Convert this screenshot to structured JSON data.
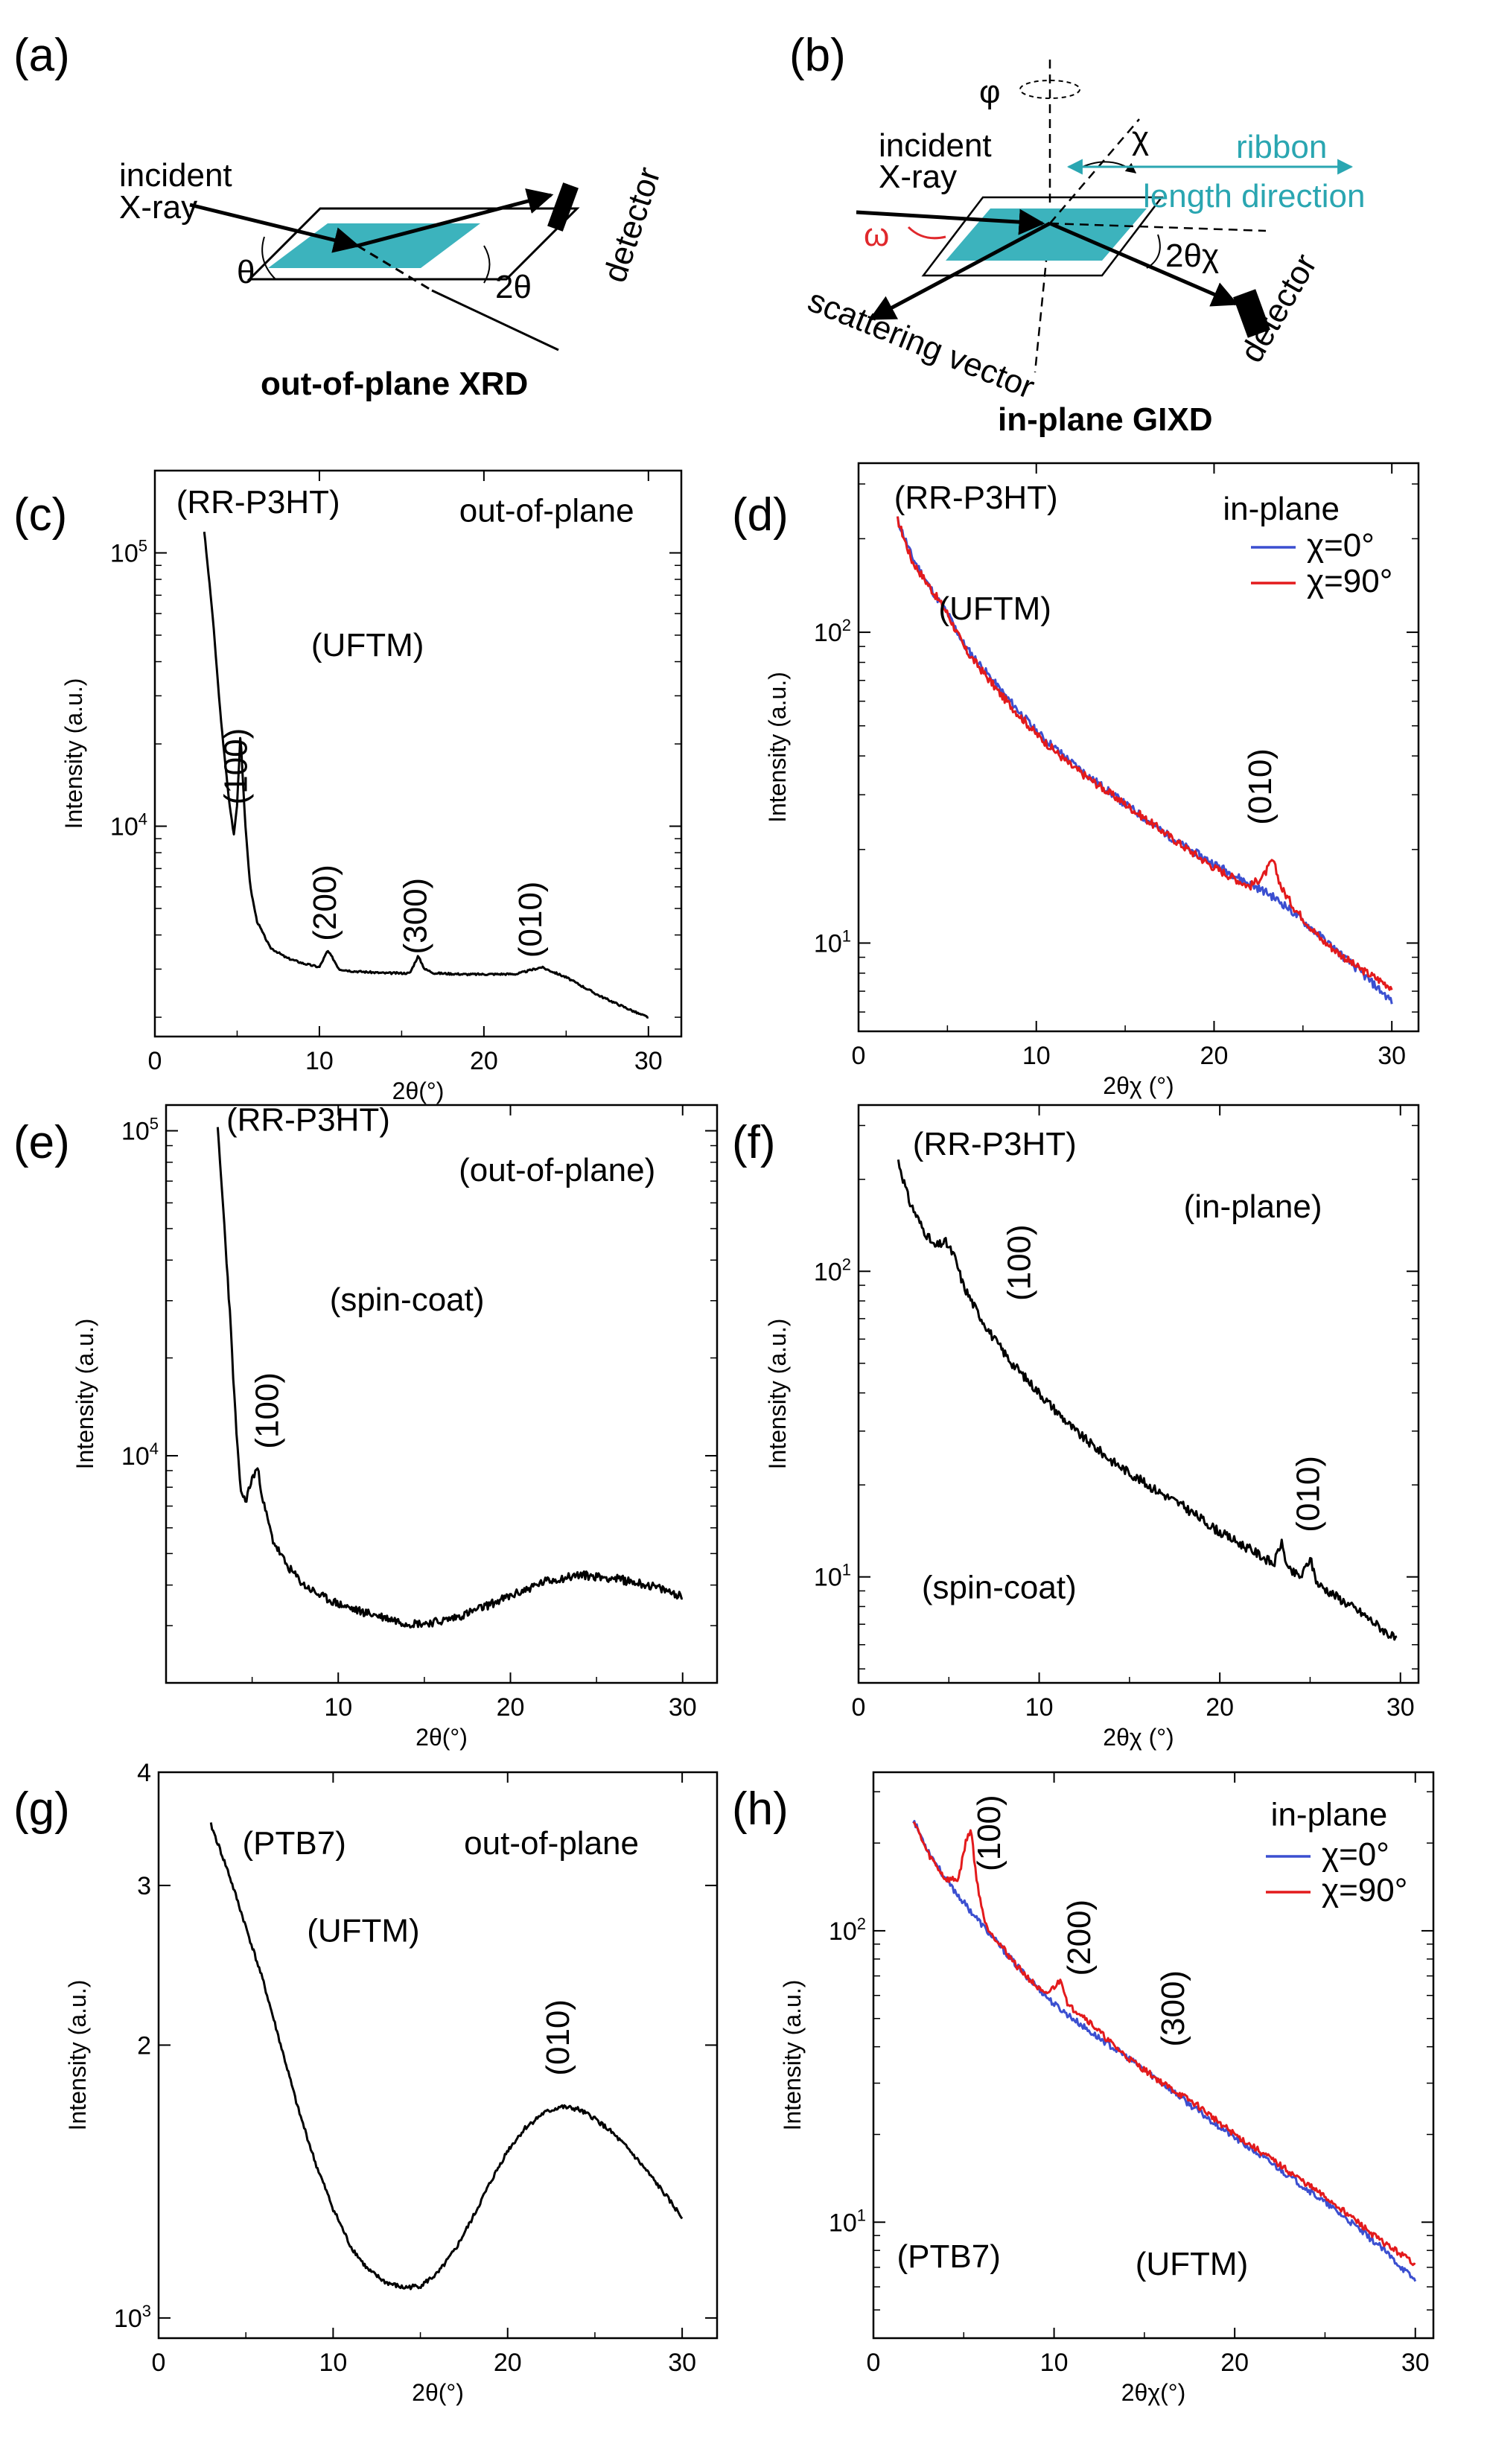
{
  "panel_a": {
    "label": "(a)",
    "incident_line1": "incident",
    "incident_line2": "X-ray",
    "theta": "θ",
    "two_theta": "2θ",
    "detector": "detector",
    "caption": "out-of-plane XRD",
    "colors": {
      "sample": "#3cb3bd"
    }
  },
  "panel_b": {
    "label": "(b)",
    "phi": "φ",
    "chi": "χ",
    "ribbon_line1": "ribbon",
    "ribbon_line2": "length direction",
    "incident_line1": "incident",
    "incident_line2": "X-ray",
    "omega": "ω",
    "two_theta_chi": "2θχ",
    "scattering": "scattering vector",
    "detector": "detector",
    "caption": "in-plane GIXD",
    "colors": {
      "sample": "#3cb3bd",
      "ribbon": "#2aa6b1",
      "omega": "#e0282c"
    }
  },
  "chart_data": [
    {
      "id": "c",
      "panel_label": "(c)",
      "type": "line",
      "scale": "log",
      "xlabel": "2θ(°)",
      "ylabel": "Intensity (a.u.)",
      "xlim": [
        0,
        32
      ],
      "ylim": [
        1700,
        200000
      ],
      "xticks": [
        0,
        10,
        20,
        30
      ],
      "yticks": [
        {
          "v": 10000,
          "base": "10",
          "exp": "4"
        },
        {
          "v": 100000,
          "base": "10",
          "exp": "5"
        }
      ],
      "annotations": [
        {
          "text": "(RR-P3HT)",
          "x": 1.3,
          "y": 140000
        },
        {
          "text": "out-of-plane",
          "x": 18.5,
          "y": 130000
        },
        {
          "text": "(UFTM)",
          "x": 9.5,
          "y": 42000
        }
      ],
      "peak_labels": [
        {
          "text": "(100)",
          "x": 5.6,
          "y": 12000
        },
        {
          "text": "(200)",
          "x": 11.0,
          "y": 3800
        },
        {
          "text": "(300)",
          "x": 16.5,
          "y": 3400
        },
        {
          "text": "(010)",
          "x": 23.5,
          "y": 3300
        }
      ],
      "series": [
        {
          "name": "RR-P3HT UFTM",
          "color": "#000000",
          "seed": 3,
          "noise": 0.008,
          "x": [
            3.0,
            3.5,
            4.0,
            4.5,
            4.8,
            5.0,
            5.2,
            5.5,
            5.8,
            6.2,
            7.0,
            8.0,
            9.0,
            10.0,
            10.5,
            10.8,
            11.2,
            12.0,
            14.0,
            15.5,
            16.0,
            16.4,
            17.0,
            19.0,
            22.0,
            23.5,
            25.0,
            27.0,
            29.5,
            30.0
          ],
          "y": [
            120000,
            60000,
            25000,
            12500,
            9300,
            12000,
            22000,
            10000,
            6000,
            4500,
            3600,
            3300,
            3150,
            3050,
            3500,
            3300,
            3000,
            2950,
            2900,
            2900,
            3350,
            3000,
            2900,
            2870,
            2880,
            3050,
            2800,
            2400,
            2050,
            2000
          ]
        }
      ]
    },
    {
      "id": "d",
      "panel_label": "(d)",
      "type": "line",
      "scale": "log",
      "xlabel": "2θχ (°)",
      "ylabel": "Intensity (a.u.)",
      "xlim": [
        0,
        31.5
      ],
      "ylim": [
        5.2,
        350
      ],
      "xticks": [
        0,
        10,
        20,
        30
      ],
      "yticks": [
        {
          "v": 10,
          "base": "10",
          "exp": "1"
        },
        {
          "v": 100,
          "base": "10",
          "exp": "2"
        }
      ],
      "annotations": [
        {
          "text": "(RR-P3HT)",
          "x": 2.0,
          "y": 250
        },
        {
          "text": "(UFTM)",
          "x": 4.5,
          "y": 110
        },
        {
          "text": "in-plane",
          "x": 20.5,
          "y": 230
        }
      ],
      "peak_labels": [
        {
          "text": "(010)",
          "x": 23.2,
          "y": 24
        }
      ],
      "legend": {
        "position": "top-right",
        "entries": [
          {
            "name": "χ=0°",
            "color": "#3b4fd0"
          },
          {
            "name": "χ=90°",
            "color": "#e31a1c"
          }
        ]
      },
      "series": [
        {
          "name": "χ=0°",
          "color": "#3b4fd0",
          "seed": 11,
          "noise": 0.03,
          "x": [
            2.2,
            3.0,
            4.0,
            5.0,
            6.0,
            8.0,
            10.0,
            12.0,
            15.0,
            18.0,
            20.0,
            22.0,
            23.0,
            24.0,
            26.0,
            28.0,
            30.0
          ],
          "y": [
            230,
            175,
            140,
            115,
            90,
            65,
            48,
            38,
            28,
            21,
            18,
            15.5,
            14.5,
            13.2,
            10.5,
            8.3,
            6.5
          ]
        },
        {
          "name": "χ=90°",
          "color": "#e31a1c",
          "seed": 17,
          "noise": 0.03,
          "x": [
            2.2,
            3.0,
            4.0,
            5.0,
            6.0,
            8.0,
            10.0,
            12.0,
            15.0,
            18.0,
            20.0,
            22.0,
            22.8,
            23.3,
            23.8,
            24.5,
            26.0,
            28.0,
            30.0
          ],
          "y": [
            230,
            170,
            140,
            115,
            88,
            63,
            47,
            37,
            28,
            21,
            17.5,
            15.2,
            16.5,
            18.5,
            15,
            13,
            10.3,
            8.4,
            7.2
          ]
        }
      ]
    },
    {
      "id": "e",
      "panel_label": "(e)",
      "type": "line",
      "scale": "log",
      "xlabel": "2θ(°)",
      "ylabel": "Intensity (a.u.)",
      "xlim": [
        0,
        32
      ],
      "ylim": [
        2000,
        120000
      ],
      "xticks": [
        10,
        20,
        30
      ],
      "yticks": [
        {
          "v": 10000,
          "base": "10",
          "exp": "4"
        },
        {
          "v": 100000,
          "base": "10",
          "exp": "5"
        }
      ],
      "annotations": [
        {
          "text": "(RR-P3HT)",
          "x": 3.5,
          "y": 100000
        },
        {
          "text": "(out-of-plane)",
          "x": 17.0,
          "y": 70000
        },
        {
          "text": "(spin-coat)",
          "x": 9.5,
          "y": 28000
        }
      ],
      "peak_labels": [
        {
          "text": "(100)",
          "x": 6.5,
          "y": 10500
        }
      ],
      "series": [
        {
          "name": "RR-P3HT spin-coat",
          "color": "#000000",
          "seed": 23,
          "noise": 0.03,
          "x": [
            3.0,
            3.3,
            3.7,
            4.0,
            4.3,
            4.6,
            5.0,
            5.3,
            5.7,
            6.2,
            7.0,
            8.0,
            9.0,
            10.0,
            11.0,
            12.0,
            13.0,
            14.0,
            15.0,
            16.0,
            17.0,
            18.0,
            20.0,
            22.0,
            24.0,
            26.0,
            28.0,
            30.0
          ],
          "y": [
            100000,
            60000,
            28000,
            14000,
            8000,
            7200,
            8500,
            9200,
            7000,
            5500,
            4600,
            4000,
            3700,
            3500,
            3350,
            3250,
            3150,
            3050,
            3050,
            3100,
            3200,
            3350,
            3700,
            4100,
            4300,
            4200,
            4000,
            3700
          ]
        }
      ]
    },
    {
      "id": "f",
      "panel_label": "(f)",
      "type": "line",
      "scale": "log",
      "xlabel": "2θχ (°)",
      "ylabel": "Intensity (a.u.)",
      "xlim": [
        0,
        31
      ],
      "ylim": [
        4.5,
        350
      ],
      "xticks": [
        0,
        10,
        20,
        30
      ],
      "yticks": [
        {
          "v": 10,
          "base": "10",
          "exp": "1"
        },
        {
          "v": 100,
          "base": "10",
          "exp": "2"
        }
      ],
      "annotations": [
        {
          "text": "(RR-P3HT)",
          "x": 3.0,
          "y": 240
        },
        {
          "text": "(in-plane)",
          "x": 18.0,
          "y": 150
        },
        {
          "text": "(spin-coat)",
          "x": 3.5,
          "y": 8.5
        }
      ],
      "peak_labels": [
        {
          "text": "(100)",
          "x": 9.5,
          "y": 80
        },
        {
          "text": "(010)",
          "x": 25.5,
          "y": 14
        }
      ],
      "series": [
        {
          "name": "RR-P3HT spin-coat in-plane",
          "color": "#000000",
          "seed": 31,
          "noise": 0.035,
          "x": [
            2.2,
            2.8,
            3.5,
            4.2,
            4.8,
            5.3,
            5.8,
            6.5,
            7.5,
            8.5,
            10.0,
            12.0,
            14.0,
            16.0,
            18.0,
            20.0,
            22.0,
            23.0,
            23.4,
            23.8,
            24.5,
            25.0,
            25.4,
            26.0,
            28.0,
            29.8
          ],
          "y": [
            230,
            170,
            140,
            120,
            125,
            112,
            90,
            75,
            60,
            50,
            40,
            30,
            24,
            20,
            17,
            14,
            12,
            11,
            13,
            10.5,
            10,
            11.5,
            9.5,
            9.0,
            7.5,
            6.2
          ]
        }
      ]
    },
    {
      "id": "g",
      "panel_label": "(g)",
      "type": "line",
      "scale": "log",
      "xlabel": "2θ(°)",
      "ylabel": "Intensity (a.u.)",
      "xlim": [
        0,
        32
      ],
      "ylim": [
        950,
        4000
      ],
      "xticks": [
        0,
        10,
        20,
        30
      ],
      "yticks": [
        {
          "v": 1000,
          "base": "10",
          "exp": "3"
        },
        {
          "v": 2000,
          "text": "2"
        },
        {
          "v": 3000,
          "text": "3"
        },
        {
          "v": 4000,
          "text": "4"
        }
      ],
      "annotations": [
        {
          "text": "(PTB7)",
          "x": 4.8,
          "y": 3250
        },
        {
          "text": "out-of-plane",
          "x": 17.5,
          "y": 3250
        },
        {
          "text": "(UFTM)",
          "x": 8.5,
          "y": 2600
        }
      ],
      "peak_labels": [
        {
          "text": "(010)",
          "x": 23.5,
          "y": 1850
        }
      ],
      "series": [
        {
          "name": "PTB7 UFTM",
          "color": "#000000",
          "seed": 41,
          "noise": 0.006,
          "x": [
            3.0,
            4.0,
            5.0,
            6.0,
            7.0,
            8.0,
            9.0,
            10.0,
            11.0,
            12.0,
            13.0,
            14.0,
            15.0,
            16.0,
            17.0,
            18.0,
            19.0,
            20.0,
            21.0,
            22.0,
            23.0,
            24.0,
            25.0,
            26.0,
            27.0,
            28.0,
            29.0,
            30.0
          ],
          "y": [
            3500,
            3100,
            2700,
            2350,
            2000,
            1700,
            1480,
            1320,
            1200,
            1130,
            1095,
            1080,
            1085,
            1120,
            1190,
            1290,
            1410,
            1530,
            1620,
            1680,
            1710,
            1700,
            1660,
            1600,
            1530,
            1450,
            1370,
            1290
          ]
        }
      ]
    },
    {
      "id": "h",
      "panel_label": "(h)",
      "type": "line",
      "scale": "log",
      "xlabel": "2θχ(°)",
      "ylabel": "Intensity (a.u.)",
      "xlim": [
        0,
        31
      ],
      "ylim": [
        4.0,
        350
      ],
      "xticks": [
        0,
        10,
        20,
        30
      ],
      "yticks": [
        {
          "v": 10,
          "base": "10",
          "exp": "1"
        },
        {
          "v": 100,
          "base": "10",
          "exp": "2"
        }
      ],
      "annotations": [
        {
          "text": "in-plane",
          "x": 22.0,
          "y": 230
        },
        {
          "text": "(PTB7)",
          "x": 1.3,
          "y": 7.0
        },
        {
          "text": "(UFTM)",
          "x": 14.5,
          "y": 6.6
        }
      ],
      "peak_labels": [
        {
          "text": "(100)",
          "x": 7.0,
          "y": 160
        },
        {
          "text": "(200)",
          "x": 12.0,
          "y": 70
        },
        {
          "text": "(300)",
          "x": 17.2,
          "y": 40
        }
      ],
      "legend": {
        "position": "top-right",
        "entries": [
          {
            "name": "χ=0°",
            "color": "#3b4fd0"
          },
          {
            "name": "χ=90°",
            "color": "#e31a1c"
          }
        ]
      },
      "series": [
        {
          "name": "χ=0°",
          "color": "#3b4fd0",
          "seed": 53,
          "noise": 0.025,
          "x": [
            2.2,
            3.0,
            4.0,
            5.0,
            6.0,
            8.0,
            10.0,
            12.0,
            14.0,
            16.0,
            18.0,
            20.0,
            22.0,
            24.0,
            26.0,
            28.0,
            30.0
          ],
          "y": [
            240,
            190,
            150,
            125,
            105,
            75,
            56,
            45,
            37,
            30,
            24,
            19.5,
            16,
            13,
            10.5,
            8.3,
            6.3
          ]
        },
        {
          "name": "χ=90°",
          "color": "#e31a1c",
          "seed": 59,
          "noise": 0.025,
          "x": [
            2.2,
            3.0,
            4.0,
            4.7,
            5.1,
            5.4,
            5.7,
            6.2,
            7.0,
            8.0,
            9.5,
            10.1,
            10.4,
            10.8,
            11.5,
            13.0,
            14.0,
            16.0,
            18.0,
            20.0,
            22.0,
            24.0,
            26.0,
            28.0,
            30.0
          ],
          "y": [
            240,
            185,
            150,
            150,
            200,
            225,
            150,
            105,
            90,
            75,
            60,
            65,
            68,
            55,
            52,
            42,
            37,
            30,
            25,
            20,
            16.5,
            13.5,
            11,
            8.7,
            7.2
          ]
        }
      ]
    }
  ]
}
